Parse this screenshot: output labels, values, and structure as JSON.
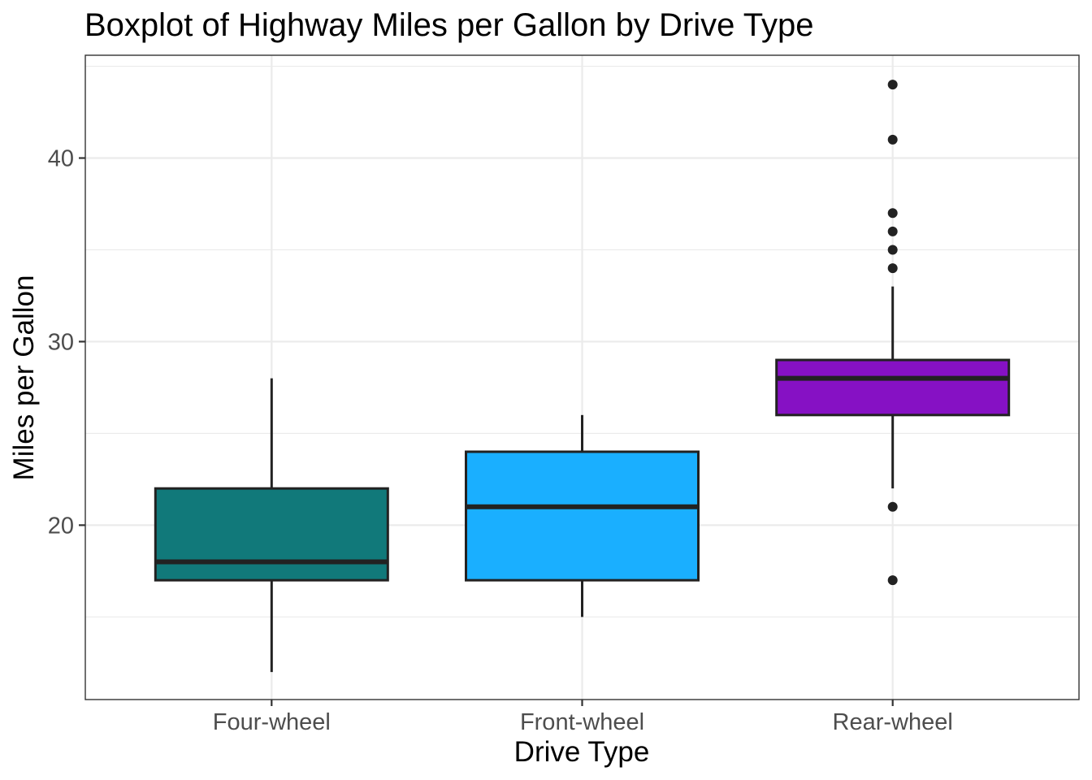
{
  "chart_data": {
    "type": "box",
    "title": "Boxplot of Highway Miles per Gallon by Drive Type",
    "xlabel": "Drive Type",
    "ylabel": "Miles per Gallon",
    "ylim": [
      10.5,
      45.6
    ],
    "y_ticks": [
      20,
      30,
      40
    ],
    "y_minor_ticks": [
      15,
      25,
      35,
      45
    ],
    "grid": true,
    "legend": "none",
    "categories": [
      "Four-wheel",
      "Front-wheel",
      "Rear-wheel"
    ],
    "boxes": [
      {
        "category": "Four-wheel",
        "color": "#11797A",
        "whisker_low": 12,
        "q1": 17,
        "median": 18,
        "q3": 22,
        "whisker_high": 28,
        "outliers": []
      },
      {
        "category": "Front-wheel",
        "color": "#1AAFFF",
        "whisker_low": 15,
        "q1": 17,
        "median": 21,
        "q3": 24,
        "whisker_high": 26,
        "outliers": []
      },
      {
        "category": "Rear-wheel",
        "color": "#8611C4",
        "whisker_low": 22,
        "q1": 26,
        "median": 28,
        "q3": 29,
        "whisker_high": 33,
        "outliers": [
          44,
          41,
          37,
          36,
          35,
          34,
          21,
          17
        ]
      }
    ]
  }
}
